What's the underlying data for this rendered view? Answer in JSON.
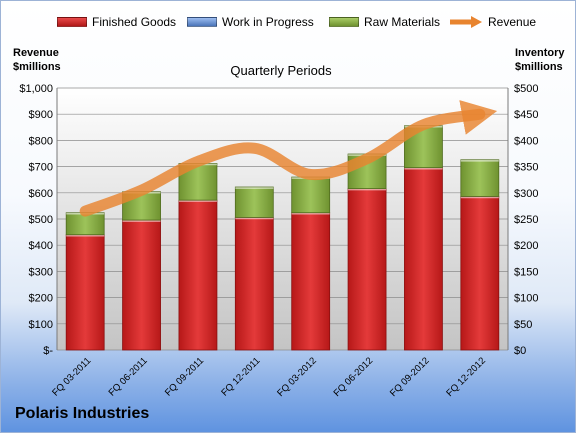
{
  "legend": {
    "finished_goods": "Finished Goods",
    "work_in_progress": "Work in Progress",
    "raw_materials": "Raw Materials",
    "revenue": "Revenue"
  },
  "left_axis_title": [
    "Revenue",
    "$millions"
  ],
  "right_axis_title": [
    "Inventory",
    "$millions"
  ],
  "company": "Polaris Industries",
  "colors": {
    "finished_goods": "#cc2020",
    "work_in_progress": "#5b86c9",
    "raw_materials": "#7fa43a",
    "revenue": "#e8842f"
  },
  "chart_data": {
    "type": "bar",
    "stacked": true,
    "title": "Quarterly Periods",
    "categories": [
      "FQ 03-2011",
      "FQ 06-2011",
      "FQ 09-2011",
      "FQ 12-2011",
      "FQ 03-2012",
      "FQ 06-2012",
      "FQ 09-2012",
      "FQ 12-2012"
    ],
    "series": [
      {
        "name": "Finished Goods",
        "axis": "right",
        "values": [
          220,
          248,
          286,
          253,
          262,
          308,
          348,
          293
        ]
      },
      {
        "name": "Work in Progress",
        "axis": "right",
        "values": [
          0,
          0,
          0,
          0,
          0,
          0,
          0,
          0
        ]
      },
      {
        "name": "Raw Materials",
        "axis": "right",
        "values": [
          42,
          54,
          70,
          58,
          68,
          66,
          80,
          70
        ]
      },
      {
        "name": "Revenue",
        "type": "line",
        "axis": "left",
        "values": [
          530,
          610,
          720,
          770,
          670,
          730,
          860,
          900
        ]
      }
    ],
    "left_axis": {
      "label": "Revenue $millions",
      "ylim": [
        0,
        1000
      ],
      "ticks": [
        "$-",
        "$100",
        "$200",
        "$300",
        "$400",
        "$500",
        "$600",
        "$700",
        "$800",
        "$900",
        "$1,000"
      ]
    },
    "right_axis": {
      "label": "Inventory $millions",
      "ylim": [
        0,
        500
      ],
      "ticks": [
        "$0",
        "$50",
        "$100",
        "$150",
        "$200",
        "$250",
        "$300",
        "$350",
        "$400",
        "$450",
        "$500"
      ]
    },
    "grid": true,
    "legend_position": "top"
  }
}
